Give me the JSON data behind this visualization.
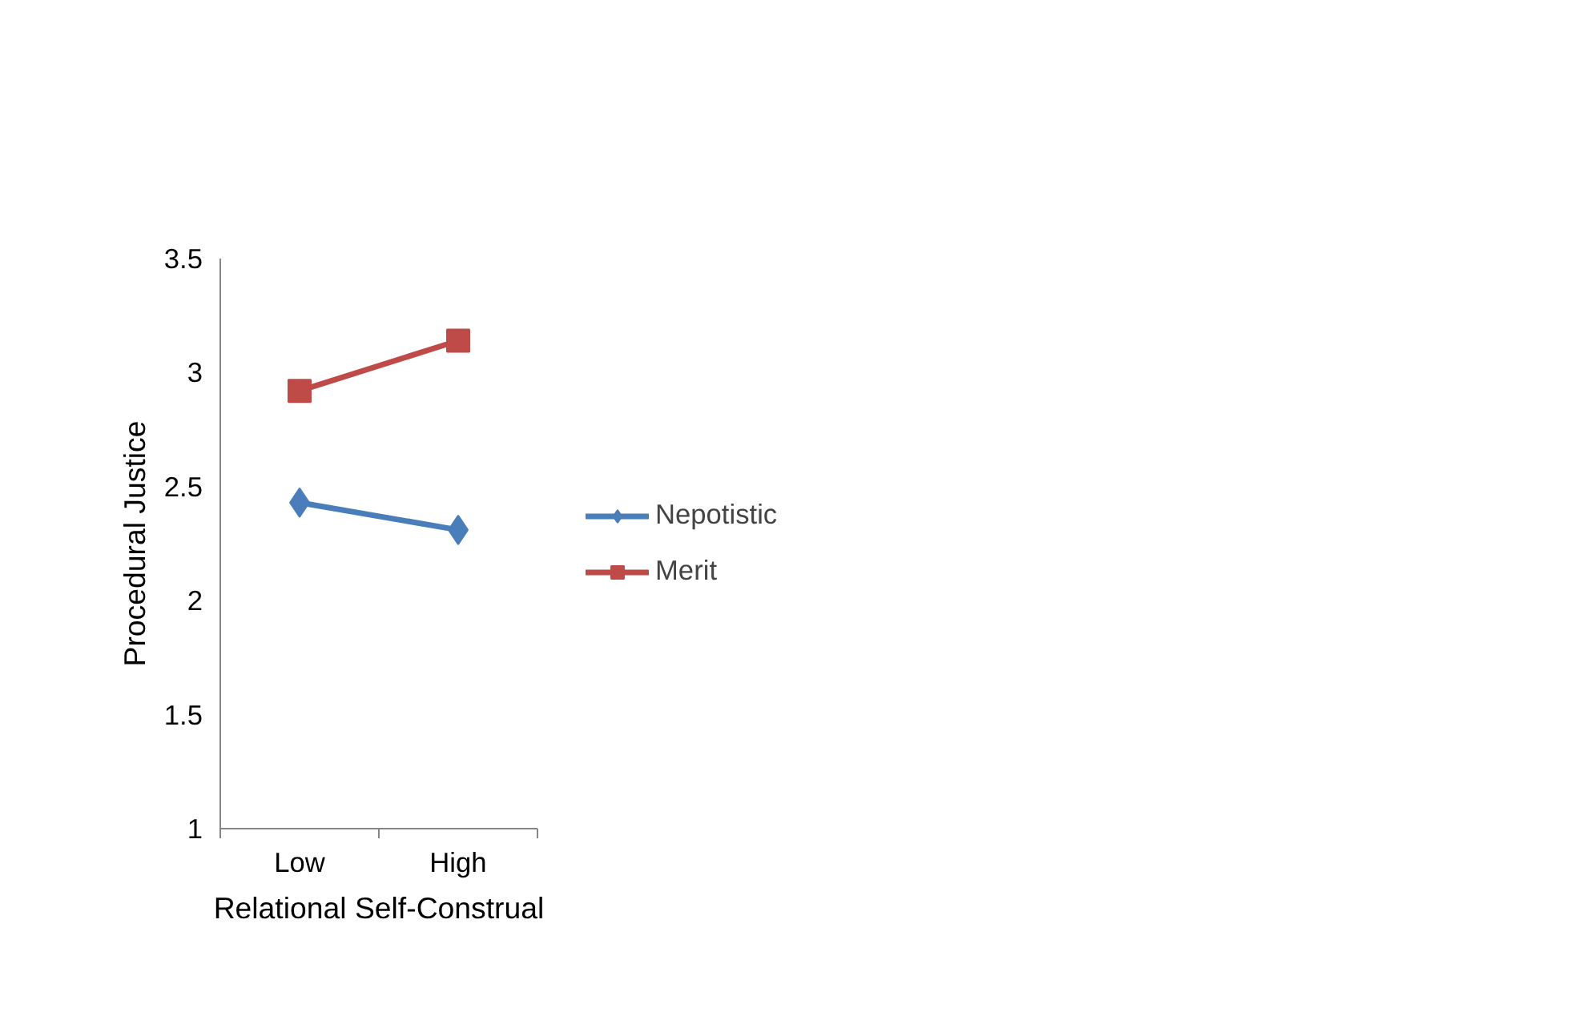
{
  "chart_data": {
    "type": "line",
    "xlabel": "Relational Self-Construal",
    "ylabel": "Procedural Justice",
    "categories": [
      "Low",
      "High"
    ],
    "series": [
      {
        "name": "Nepotistic",
        "color": "#4a7ebb",
        "values": [
          2.43,
          2.31
        ],
        "marker": "diamond"
      },
      {
        "name": "Merit",
        "color": "#be4b48",
        "values": [
          2.92,
          3.14
        ],
        "marker": "square"
      }
    ],
    "ylim": [
      1,
      3.5
    ],
    "yticks": [
      1,
      1.5,
      2,
      2.5,
      3,
      3.5
    ],
    "grid": false,
    "legend": "right",
    "line_style": "solid"
  }
}
